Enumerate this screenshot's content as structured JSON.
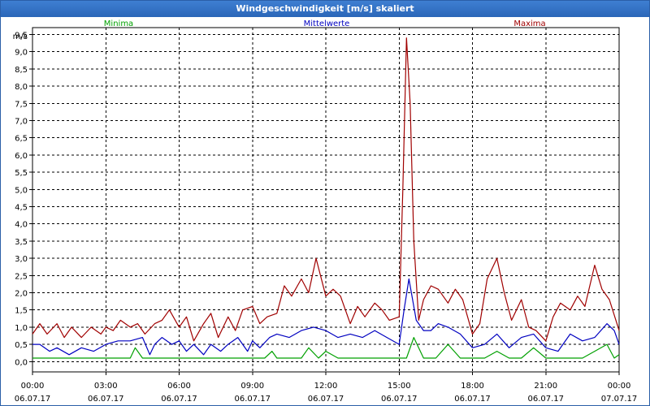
{
  "window": {
    "title": "Windgeschwindigkeit [m/s] skaliert"
  },
  "chart_data": {
    "type": "line",
    "title": "Windgeschwindigkeit [m/s] skaliert",
    "ylabel": "m/s",
    "ylim": [
      -0.3,
      9.7
    ],
    "xlim": [
      0,
      24
    ],
    "y_ticks": [
      "0,0",
      "0,5",
      "1,0",
      "1,5",
      "2,0",
      "2,5",
      "3,0",
      "3,5",
      "4,0",
      "4,5",
      "5,0",
      "5,5",
      "6,0",
      "6,5",
      "7,0",
      "7,5",
      "8,0",
      "8,5",
      "9,0",
      "9,5"
    ],
    "y_tick_values": [
      0,
      0.5,
      1,
      1.5,
      2,
      2.5,
      3,
      3.5,
      4,
      4.5,
      5,
      5.5,
      6,
      6.5,
      7,
      7.5,
      8,
      8.5,
      9,
      9.5
    ],
    "x_ticks": [
      {
        "t": "00:00",
        "d": "06.07.17"
      },
      {
        "t": "03:00",
        "d": "06.07.17"
      },
      {
        "t": "06:00",
        "d": "06.07.17"
      },
      {
        "t": "09:00",
        "d": "06.07.17"
      },
      {
        "t": "12:00",
        "d": "06.07.17"
      },
      {
        "t": "15:00",
        "d": "06.07.17"
      },
      {
        "t": "18:00",
        "d": "06.07.17"
      },
      {
        "t": "21:00",
        "d": "06.07.17"
      },
      {
        "t": "00:00",
        "d": "07.07.17"
      }
    ],
    "x_tick_hours": [
      0,
      3,
      6,
      9,
      12,
      15,
      18,
      21,
      24
    ],
    "grid": true,
    "legend_placement": "top",
    "series": [
      {
        "name": "Minima",
        "color": "#00a000",
        "x": [
          0,
          0.5,
          1,
          1.5,
          2,
          2.5,
          3,
          3.5,
          4,
          4.2,
          4.5,
          5,
          5.5,
          6,
          6.5,
          7,
          7.5,
          8,
          8.5,
          9,
          9.5,
          9.8,
          10,
          10.5,
          11,
          11.3,
          11.7,
          12,
          12.5,
          13,
          13.5,
          14,
          14.5,
          15,
          15.3,
          15.6,
          16,
          16.5,
          17,
          17.5,
          18,
          18.5,
          19,
          19.5,
          20,
          20.5,
          21,
          21.5,
          22,
          22.5,
          23,
          23.5,
          23.8,
          24
        ],
        "y": [
          0.1,
          0.1,
          0.1,
          0.1,
          0.1,
          0.1,
          0.1,
          0.1,
          0.1,
          0.4,
          0.1,
          0.1,
          0.1,
          0.1,
          0.1,
          0.1,
          0.1,
          0.1,
          0.1,
          0.1,
          0.1,
          0.3,
          0.1,
          0.1,
          0.1,
          0.4,
          0.1,
          0.3,
          0.1,
          0.1,
          0.1,
          0.1,
          0.1,
          0.1,
          0.1,
          0.7,
          0.1,
          0.1,
          0.5,
          0.1,
          0.1,
          0.1,
          0.3,
          0.1,
          0.1,
          0.4,
          0.1,
          0.1,
          0.1,
          0.1,
          0.3,
          0.5,
          0.1,
          0.2
        ]
      },
      {
        "name": "Mittelwerte",
        "color": "#0000c0",
        "x": [
          0,
          0.3,
          0.7,
          1,
          1.5,
          2,
          2.5,
          3,
          3.5,
          4,
          4.5,
          4.8,
          5,
          5.3,
          5.7,
          6,
          6.3,
          6.6,
          7,
          7.3,
          7.7,
          8,
          8.4,
          8.8,
          9,
          9.3,
          9.7,
          10,
          10.5,
          11,
          11.5,
          12,
          12.5,
          13,
          13.5,
          14,
          14.5,
          15,
          15.2,
          15.4,
          15.7,
          16,
          16.3,
          16.6,
          17,
          17.5,
          18,
          18.5,
          19,
          19.5,
          20,
          20.5,
          21,
          21.5,
          22,
          22.5,
          23,
          23.5,
          23.8,
          24
        ],
        "y": [
          0.5,
          0.5,
          0.3,
          0.4,
          0.2,
          0.4,
          0.3,
          0.5,
          0.6,
          0.6,
          0.7,
          0.2,
          0.5,
          0.7,
          0.5,
          0.6,
          0.3,
          0.5,
          0.2,
          0.5,
          0.3,
          0.5,
          0.7,
          0.3,
          0.6,
          0.4,
          0.7,
          0.8,
          0.7,
          0.9,
          1.0,
          0.9,
          0.7,
          0.8,
          0.7,
          0.9,
          0.7,
          0.5,
          1.5,
          2.4,
          1.2,
          0.9,
          0.9,
          1.1,
          1.0,
          0.8,
          0.4,
          0.5,
          0.8,
          0.4,
          0.7,
          0.8,
          0.4,
          0.3,
          0.8,
          0.6,
          0.7,
          1.1,
          0.9,
          0.5
        ]
      },
      {
        "name": "Maxima",
        "color": "#a00000",
        "x": [
          0,
          0.3,
          0.6,
          1,
          1.3,
          1.6,
          2,
          2.4,
          2.8,
          3,
          3.3,
          3.6,
          4,
          4.3,
          4.6,
          5,
          5.3,
          5.6,
          6,
          6.3,
          6.6,
          7,
          7.3,
          7.6,
          8,
          8.3,
          8.6,
          9,
          9.3,
          9.6,
          10,
          10.3,
          10.6,
          11,
          11.3,
          11.6,
          12,
          12.3,
          12.6,
          13,
          13.3,
          13.6,
          14,
          14.3,
          14.6,
          15,
          15.15,
          15.3,
          15.45,
          15.6,
          15.8,
          16,
          16.3,
          16.6,
          17,
          17.3,
          17.6,
          18,
          18.3,
          18.6,
          19,
          19.3,
          19.6,
          20,
          20.3,
          20.6,
          21,
          21.3,
          21.6,
          22,
          22.3,
          22.6,
          23,
          23.3,
          23.6,
          24
        ],
        "y": [
          0.8,
          1.1,
          0.8,
          1.1,
          0.7,
          1.0,
          0.7,
          1.0,
          0.8,
          1.0,
          0.9,
          1.2,
          1.0,
          1.1,
          0.8,
          1.1,
          1.2,
          1.5,
          1.0,
          1.3,
          0.6,
          1.1,
          1.4,
          0.7,
          1.3,
          0.9,
          1.5,
          1.6,
          1.1,
          1.3,
          1.4,
          2.2,
          1.9,
          2.4,
          2.0,
          3.0,
          1.9,
          2.1,
          1.9,
          1.1,
          1.6,
          1.3,
          1.7,
          1.5,
          1.2,
          1.3,
          5.0,
          9.4,
          7.5,
          3.5,
          1.2,
          1.8,
          2.2,
          2.1,
          1.7,
          2.1,
          1.8,
          0.8,
          1.1,
          2.4,
          3.0,
          2.0,
          1.2,
          1.8,
          1.0,
          0.9,
          0.6,
          1.3,
          1.7,
          1.5,
          1.9,
          1.6,
          2.8,
          2.1,
          1.8,
          0.9
        ]
      }
    ]
  }
}
